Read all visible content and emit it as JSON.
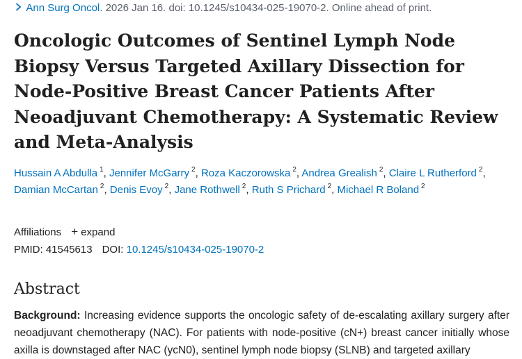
{
  "citation": {
    "journal": "Ann Surg Oncol.",
    "details": " 2026 Jan 16. doi: 10.1245/s10434-025-19070-2. Online ahead of print."
  },
  "title": "Oncologic Outcomes of Sentinel Lymph Node Biopsy Versus Targeted Axillary Dissection for Node-Positive Breast Cancer Patients After Neoadjuvant Chemotherapy: A Systematic Review and Meta-Analysis",
  "authors": [
    {
      "name": "Hussain A Abdulla",
      "aff": "1"
    },
    {
      "name": "Jennifer McGarry",
      "aff": "2"
    },
    {
      "name": "Roza Kaczorowska",
      "aff": "2"
    },
    {
      "name": "Andrea Grealish",
      "aff": "2"
    },
    {
      "name": "Claire L Rutherford",
      "aff": "2"
    },
    {
      "name": "Damian McCartan",
      "aff": "2"
    },
    {
      "name": "Denis Evoy",
      "aff": "2"
    },
    {
      "name": "Jane Rothwell",
      "aff": "2"
    },
    {
      "name": "Ruth S Prichard",
      "aff": "2"
    },
    {
      "name": "Michael R Boland",
      "aff": "2"
    }
  ],
  "affiliations": {
    "label": "Affiliations",
    "expand_label": "expand"
  },
  "ids": {
    "pmid_label": "PMID:",
    "pmid": "41545613",
    "doi_label": "DOI:",
    "doi": "10.1245/s10434-025-19070-2"
  },
  "abstract": {
    "heading": "Abstract",
    "background_label": "Background:",
    "background_text": " Increasing evidence supports the oncologic safety of de-escalating axillary surgery after neoadjuvant chemotherapy (NAC). For patients with node-positive (cN+) breast cancer initially whose axilla is downstaged after NAC (ycN0), sentinel lymph node biopsy (SLNB) and targeted axillary"
  }
}
